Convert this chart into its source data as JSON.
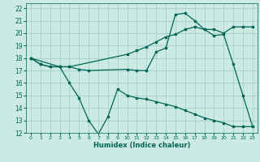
{
  "xlabel": "Humidex (Indice chaleur)",
  "bg_color": "#cceae4",
  "grid_color": "#aad4cc",
  "line_color": "#006655",
  "xlim": [
    -0.5,
    23.5
  ],
  "ylim": [
    12,
    22.4
  ],
  "xticks": [
    0,
    1,
    2,
    3,
    4,
    5,
    6,
    7,
    8,
    9,
    10,
    11,
    12,
    13,
    14,
    15,
    16,
    17,
    18,
    19,
    20,
    21,
    22,
    23
  ],
  "yticks": [
    12,
    13,
    14,
    15,
    16,
    17,
    18,
    19,
    20,
    21,
    22
  ],
  "series": [
    {
      "x": [
        0,
        1,
        2,
        3,
        4,
        10,
        11,
        12,
        13,
        14,
        15,
        16,
        17,
        18,
        19,
        20,
        21,
        22,
        23
      ],
      "y": [
        18,
        17.5,
        17.3,
        17.3,
        17.3,
        18.3,
        18.6,
        18.9,
        19.3,
        19.7,
        19.9,
        20.3,
        20.5,
        20.3,
        20.3,
        20.0,
        20.5,
        20.5,
        20.5
      ]
    },
    {
      "x": [
        0,
        1,
        2,
        3,
        4,
        5,
        6,
        10,
        11,
        12,
        13,
        14,
        15,
        16,
        17,
        18,
        19,
        20,
        21,
        22,
        23
      ],
      "y": [
        18,
        17.5,
        17.3,
        17.3,
        17.3,
        17.1,
        17.0,
        17.1,
        17.0,
        17.0,
        18.5,
        18.8,
        21.5,
        21.6,
        21.0,
        20.3,
        19.8,
        19.9,
        17.5,
        15.0,
        12.5
      ]
    },
    {
      "x": [
        0,
        3,
        4,
        5,
        6,
        7,
        8,
        9,
        10,
        11,
        12,
        13,
        14,
        15,
        16,
        17,
        18,
        19,
        20,
        21,
        22,
        23
      ],
      "y": [
        18,
        17.3,
        16.0,
        14.8,
        13.0,
        11.9,
        13.3,
        15.5,
        15.0,
        14.8,
        14.7,
        14.5,
        14.3,
        14.1,
        13.8,
        13.5,
        13.2,
        13.0,
        12.8,
        12.5,
        12.5,
        12.5
      ]
    }
  ]
}
